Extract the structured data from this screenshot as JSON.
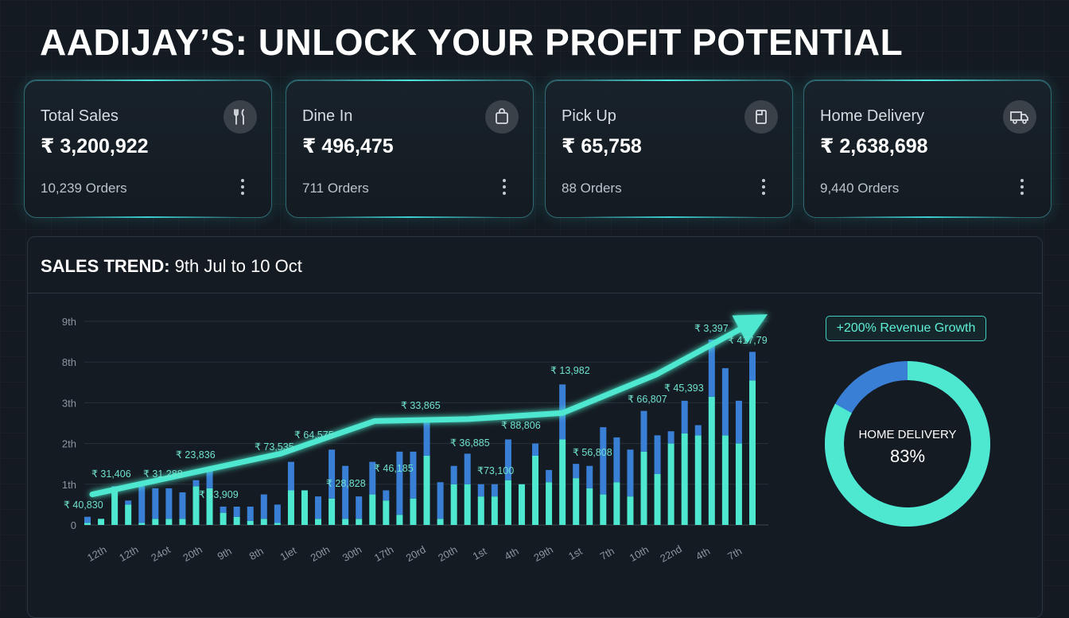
{
  "page": {
    "title": "AADIJAY’S: UNLOCK YOUR PROFIT POTENTIAL"
  },
  "cards": [
    {
      "label": "Total Sales",
      "value": "₹ 3,200,922",
      "orders": "10,239 Orders",
      "icon": "cutlery-icon"
    },
    {
      "label": "Dine In",
      "value": "₹ 496,475",
      "orders": "711 Orders",
      "icon": "shopping-bag-icon"
    },
    {
      "label": "Pick Up",
      "value": "₹ 65,758",
      "orders": "88 Orders",
      "icon": "takeaway-box-icon"
    },
    {
      "label": "Home Delivery",
      "value": "₹ 2,638,698",
      "orders": "9,440 Orders",
      "icon": "delivery-truck-icon"
    }
  ],
  "trend": {
    "title_bold": "SALES TREND:",
    "title_rest": " 9th Jul to 10 Oct"
  },
  "badge": "+200% Revenue Growth",
  "colors": {
    "primary": "#4de8cf",
    "secondary": "#3a7fd6",
    "background": "#141a21"
  },
  "chart_data": {
    "type": "bar",
    "stacked": true,
    "grid": true,
    "ylim": [
      0,
      5
    ],
    "y_ticks": [
      "0",
      "1th",
      "2th",
      "3th",
      "8th",
      "9th"
    ],
    "x_ticks": [
      "12th",
      "12th",
      "24ot",
      "20th",
      "9th",
      "8th",
      "1let",
      "20th",
      "30th",
      "17th",
      "20rd",
      "20th",
      "1st",
      "4th",
      "29th",
      "1st",
      "7th",
      "10th",
      "22nd",
      "4th",
      "7th"
    ],
    "series": [
      {
        "values": [
          0.05,
          0.15,
          0.9,
          0.5,
          0.05,
          0.15,
          0.15,
          0.15,
          0.95,
          0.9,
          0.3,
          0.2,
          0.1,
          0.15,
          0.05,
          0.85,
          0.85,
          0.15,
          0.65,
          0.15,
          0.15,
          0.75,
          0.6,
          0.25,
          0.65,
          1.7,
          0.15,
          1.0,
          1.0,
          0.7,
          0.7,
          1.1,
          1.0,
          1.7,
          1.05,
          2.1,
          1.15,
          0.9,
          0.75,
          1.05,
          0.7,
          1.8,
          1.25,
          2.0,
          2.25,
          2.2,
          3.15,
          2.2,
          2.0,
          3.55
        ]
      },
      {
        "values": [
          0.15,
          0.0,
          0.05,
          0.1,
          0.9,
          0.75,
          0.75,
          0.65,
          0.15,
          0.5,
          0.15,
          0.25,
          0.35,
          0.6,
          0.45,
          0.7,
          0.0,
          0.55,
          1.2,
          1.3,
          0.55,
          0.8,
          0.25,
          1.55,
          1.15,
          0.9,
          0.9,
          0.45,
          0.75,
          0.3,
          0.3,
          1.0,
          0.0,
          0.3,
          0.3,
          1.35,
          0.35,
          0.55,
          1.65,
          1.1,
          1.15,
          1.0,
          0.95,
          0.3,
          0.8,
          0.25,
          1.4,
          1.65,
          1.05,
          0.7
        ]
      }
    ],
    "data_labels": [
      "₹ 31,406",
      "₹ 31,288",
      "₹ 23,836",
      "₹ 73,535",
      "₹ 64,575",
      "₹ 33,865",
      "₹ 36,885",
      "₹ 88,806",
      "₹ 13,982",
      "₹ 66,807",
      "₹ 45,393",
      "₹ 3,397",
      "₹ 417,79",
      "₹ 40,830",
      "₹ 33,909",
      "₹ 28,828",
      "₹ 46,185",
      "₹73,100",
      "₹ 56,808"
    ],
    "trend_line": [
      0.75,
      1.25,
      1.75,
      2.55,
      2.6,
      2.75,
      3.7,
      4.95
    ],
    "donut": {
      "label": "HOME DELIVERY",
      "percent_label": "83%",
      "value": 83
    }
  }
}
